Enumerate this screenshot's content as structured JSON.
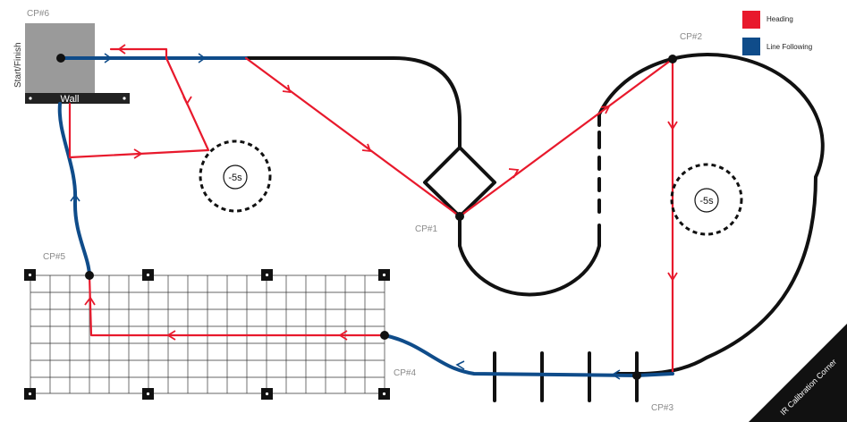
{
  "checkpoints": {
    "cp1": "CP#1",
    "cp2": "CP#2",
    "cp3": "CP#3",
    "cp4": "CP#4",
    "cp5": "CP#5",
    "cp6": "CP#6"
  },
  "start_finish": "Start/Finish",
  "wall": "Wall",
  "penalty": "-5s",
  "legend": {
    "heading": {
      "label": "Heading",
      "color": "#e8192c"
    },
    "line_following": {
      "label": "Line Following",
      "color": "#0f4c8a"
    }
  },
  "corner": "IR Calibration Corner",
  "colors": {
    "track": "#111111",
    "start_box": "#9a9a9a",
    "wall": "#222222",
    "grid": "#333333"
  }
}
